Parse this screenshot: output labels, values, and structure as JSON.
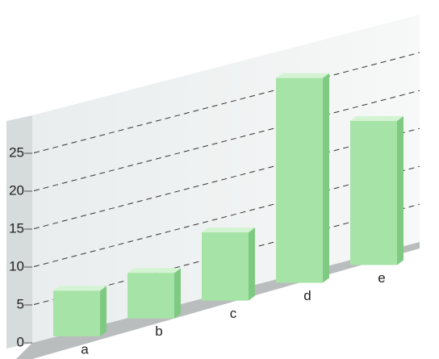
{
  "chart_data": {
    "type": "bar3d",
    "categories": [
      "a",
      "b",
      "c",
      "d",
      "e"
    ],
    "values": [
      6,
      6,
      9,
      27,
      19
    ],
    "color": "#a6e3a6",
    "ylim": [
      0,
      30
    ],
    "yticks": [
      0,
      5,
      10,
      15,
      20,
      25
    ],
    "grid": true
  }
}
